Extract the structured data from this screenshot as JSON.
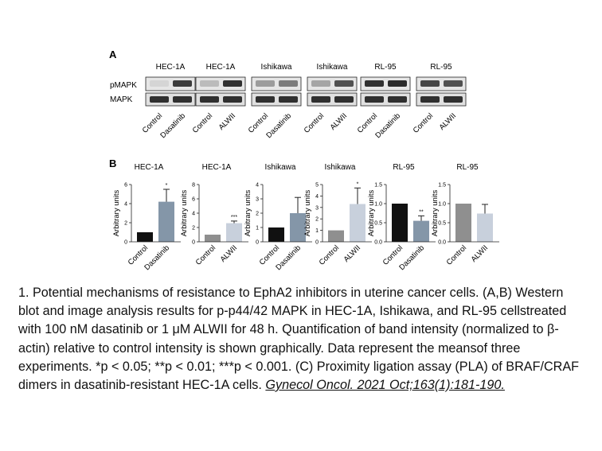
{
  "panel_a": {
    "label": "A",
    "row_labels": [
      "pMAPK",
      "MAPK"
    ],
    "blots": [
      {
        "cell_line": "HEC-1A",
        "lanes": [
          "Control",
          "Dasatinib"
        ]
      },
      {
        "cell_line": "HEC-1A",
        "lanes": [
          "Control",
          "ALWII"
        ]
      },
      {
        "cell_line": "Ishikawa",
        "lanes": [
          "Control",
          "Dasatinib"
        ]
      },
      {
        "cell_line": "Ishikawa",
        "lanes": [
          "Control",
          "ALWII"
        ]
      },
      {
        "cell_line": "RL-95",
        "lanes": [
          "Control",
          "Dasatinib"
        ]
      },
      {
        "cell_line": "RL-95",
        "lanes": [
          "Control",
          "ALWII"
        ]
      }
    ]
  },
  "panel_b": {
    "label": "B"
  },
  "chart_data": [
    {
      "type": "bar",
      "title": "HEC-1A",
      "ylabel": "Arbitrary units",
      "ylim": [
        0,
        6
      ],
      "yticks": [
        "0",
        "2",
        "4",
        "6"
      ],
      "categories": [
        "Control",
        "Dasatinib"
      ],
      "values": [
        1.0,
        4.2
      ],
      "errors": [
        0,
        1.3
      ],
      "significance": [
        "",
        "*"
      ],
      "colors": [
        "#111111",
        "#8496a8"
      ]
    },
    {
      "type": "bar",
      "title": "HEC-1A",
      "ylabel": "Arbitrary units",
      "ylim": [
        0,
        8
      ],
      "yticks": [
        "0",
        "2",
        "4",
        "6",
        "8"
      ],
      "categories": [
        "Control",
        "ALWII"
      ],
      "values": [
        1.0,
        2.6
      ],
      "errors": [
        0,
        0.3
      ],
      "significance": [
        "",
        "***"
      ],
      "colors": [
        "#8f8f8f",
        "#c8d0dc"
      ]
    },
    {
      "type": "bar",
      "title": "Ishikawa",
      "ylabel": "Arbitrary units",
      "ylim": [
        0,
        4
      ],
      "yticks": [
        "0",
        "1",
        "2",
        "3",
        "4"
      ],
      "categories": [
        "Control",
        "Dasatinib"
      ],
      "values": [
        1.0,
        2.0
      ],
      "errors": [
        0,
        1.1
      ],
      "significance": [
        "",
        ""
      ],
      "colors": [
        "#111111",
        "#8496a8"
      ]
    },
    {
      "type": "bar",
      "title": "Ishikawa",
      "ylabel": "Arbitrary units",
      "ylim": [
        0,
        5
      ],
      "yticks": [
        "0",
        "1",
        "2",
        "3",
        "4",
        "5"
      ],
      "categories": [
        "Control",
        "ALWII"
      ],
      "values": [
        1.0,
        3.3
      ],
      "errors": [
        0,
        1.4
      ],
      "significance": [
        "",
        "*"
      ],
      "colors": [
        "#8f8f8f",
        "#c8d0dc"
      ]
    },
    {
      "type": "bar",
      "title": "RL-95",
      "ylabel": "Arbitrary units",
      "ylim": [
        0,
        1.5
      ],
      "yticks": [
        "0.0",
        "0.5",
        "1.0",
        "1.5"
      ],
      "categories": [
        "Control",
        "Dasatinib"
      ],
      "values": [
        1.0,
        0.55
      ],
      "errors": [
        0,
        0.13
      ],
      "significance": [
        "",
        "**"
      ],
      "colors": [
        "#111111",
        "#8496a8"
      ]
    },
    {
      "type": "bar",
      "title": "RL-95",
      "ylabel": "Arbitrary units",
      "ylim": [
        0,
        1.5
      ],
      "yticks": [
        "0.0",
        "0.5",
        "1.0",
        "1.5"
      ],
      "categories": [
        "Control",
        "ALWII"
      ],
      "values": [
        1.0,
        0.74
      ],
      "errors": [
        0,
        0.24
      ],
      "significance": [
        "",
        ""
      ],
      "colors": [
        "#8f8f8f",
        "#c8d0dc"
      ]
    }
  ],
  "caption": {
    "text": "1. Potential mechanisms of resistance to EphA2 inhibitors in uterine cancer cells. (A,B) Western blot and image analysis results for p-p44/42 MAPK in HEC-1A, Ishikawa, and RL-95 cellstreated with 100 nM dasatinib or 1 μM ALWII for 48 h. Quantification of band intensity (normalized to β-actin) relative to control intensity is shown graphically. Data represent the meansof three experiments. *p < 0.05; **p < 0.01; ***p < 0.001. (C) Proximity ligation assay (PLA) of BRAF/CRAF dimers in dasatinib-resistant HEC-1A cells.",
    "reference": "Gynecol Oncol. 2021 Oct;163(1):181-190."
  }
}
